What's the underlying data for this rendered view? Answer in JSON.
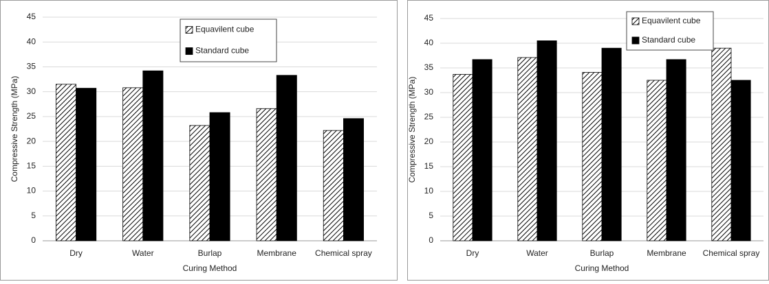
{
  "chart_data": [
    {
      "type": "bar",
      "x_label": "Curing Method",
      "y_label": "Compressive Strength (MPa)",
      "categories": [
        "Dry",
        "Water",
        "Burlap",
        "Membrane",
        "Chemical spray"
      ],
      "series": [
        {
          "name": "Equavilent cube",
          "color": "#000000",
          "pattern": "hatch",
          "values": [
            31.5,
            30.8,
            23.2,
            26.6,
            22.2
          ]
        },
        {
          "name": "Standard cube",
          "color": "#000000",
          "pattern": "solid",
          "values": [
            30.7,
            34.2,
            25.8,
            33.3,
            24.6
          ]
        }
      ],
      "ylim": [
        0,
        45
      ],
      "yticks": [
        0,
        5,
        10,
        15,
        20,
        25,
        30,
        35,
        40,
        45
      ],
      "grid": true,
      "legend": "top-center"
    },
    {
      "type": "bar",
      "x_label": "Curing Method",
      "y_label": "Compressive Strength (MPa)",
      "categories": [
        "Dry",
        "Water",
        "Burlap",
        "Membrane",
        "Chemical spray"
      ],
      "series": [
        {
          "name": "Equavilent cube",
          "color": "#000000",
          "pattern": "hatch",
          "values": [
            33.7,
            37.1,
            34.1,
            32.5,
            39.0
          ]
        },
        {
          "name": "Standard cube",
          "color": "#000000",
          "pattern": "solid",
          "values": [
            36.7,
            40.5,
            39.0,
            36.7,
            32.5
          ]
        }
      ],
      "ylim": [
        0,
        45
      ],
      "yticks": [
        0,
        5,
        10,
        15,
        20,
        25,
        30,
        35,
        40,
        45
      ],
      "grid": true,
      "legend": "top-right"
    }
  ]
}
